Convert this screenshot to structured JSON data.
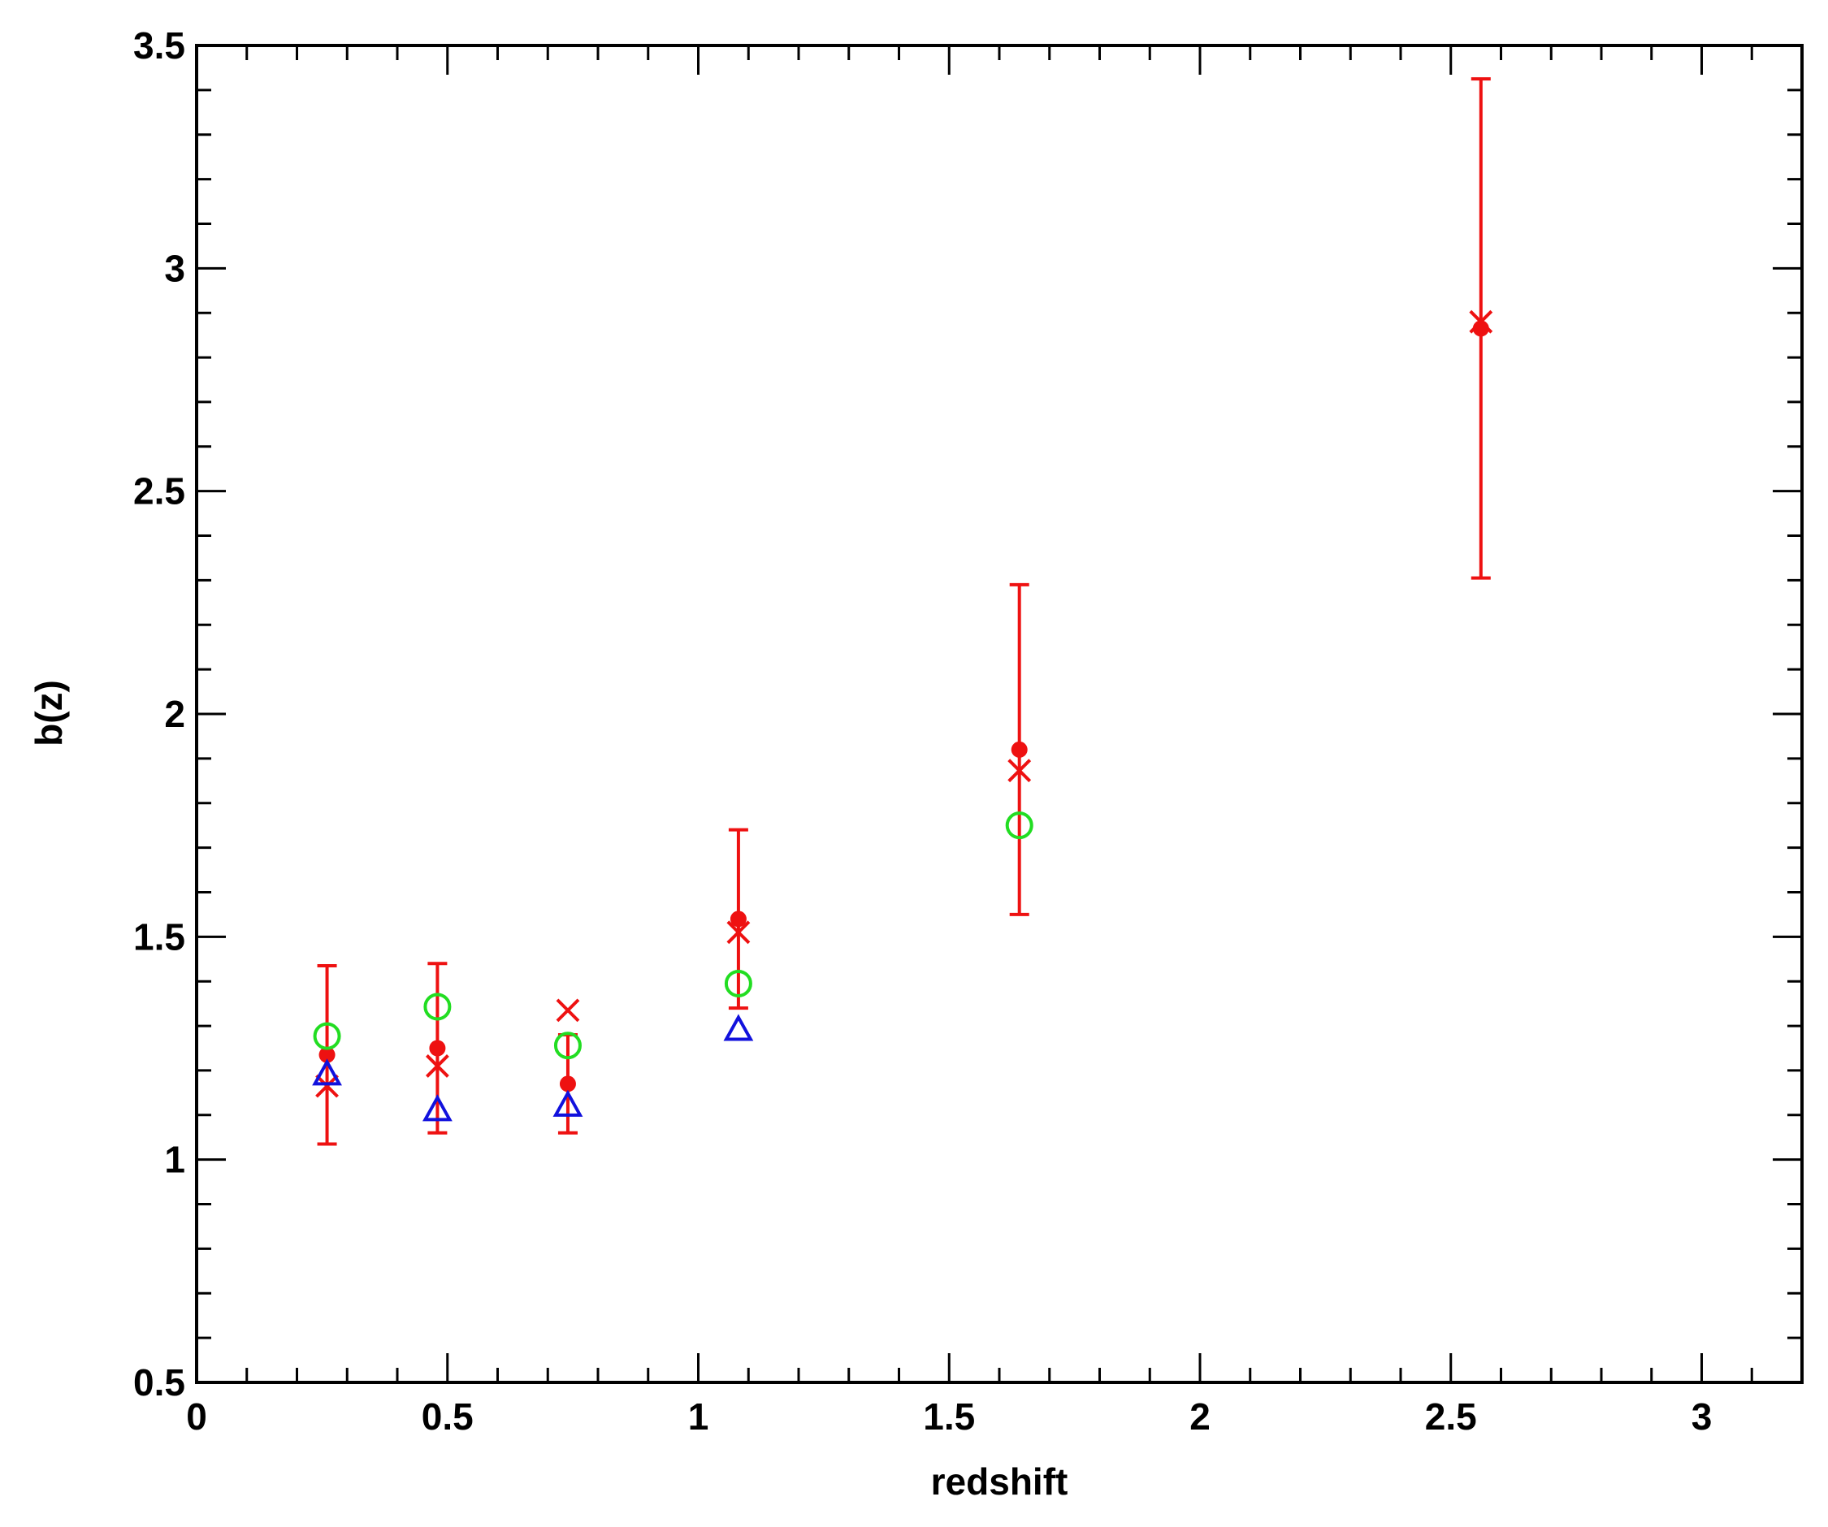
{
  "chart_data": {
    "type": "scatter",
    "x_label": "redshift",
    "y_label": "b(z)",
    "xlim": [
      0,
      3.2
    ],
    "ylim": [
      0.5,
      3.5
    ],
    "xticks": [
      0,
      0.5,
      1,
      1.5,
      2,
      2.5,
      3
    ],
    "yticks": [
      0.5,
      1,
      1.5,
      2,
      2.5,
      3,
      3.5
    ],
    "xminorticks": [
      0.1,
      0.2,
      0.3,
      0.4,
      0.6,
      0.7,
      0.8,
      0.9,
      1.1,
      1.2,
      1.3,
      1.4,
      1.6,
      1.7,
      1.8,
      1.9,
      2.1,
      2.2,
      2.3,
      2.4,
      2.6,
      2.7,
      2.8,
      2.9,
      3.1
    ],
    "yminorticks": [
      0.6,
      0.7,
      0.8,
      0.9,
      1.1,
      1.2,
      1.3,
      1.4,
      1.6,
      1.7,
      1.8,
      1.9,
      2.1,
      2.2,
      2.3,
      2.4,
      2.6,
      2.7,
      2.8,
      2.9,
      3.1,
      3.2,
      3.3,
      3.4
    ],
    "series": [
      {
        "marker": "dot",
        "color": "#ee1111",
        "x": [
          0.26,
          0.48,
          0.74,
          1.08,
          1.64,
          2.56
        ],
        "values": [
          1.235,
          1.25,
          1.17,
          1.54,
          1.92,
          2.865
        ],
        "errors": [
          0.2,
          0.19,
          0.11,
          0.2,
          0.37,
          0.56
        ]
      },
      {
        "marker": "cross",
        "color": "#ee1111",
        "x": [
          0.26,
          0.48,
          0.74,
          1.08,
          1.64,
          2.56
        ],
        "values": [
          1.165,
          1.21,
          1.335,
          1.51,
          1.873,
          2.88
        ]
      },
      {
        "marker": "circle",
        "color": "#22dd22",
        "x": [
          0.26,
          0.48,
          0.74,
          1.08,
          1.64
        ],
        "values": [
          1.277,
          1.343,
          1.256,
          1.395,
          1.75
        ]
      },
      {
        "marker": "triangle",
        "color": "#1111dd",
        "x": [
          0.26,
          0.48,
          0.74,
          1.08
        ],
        "values": [
          1.19,
          1.11,
          1.12,
          1.29
        ]
      }
    ]
  }
}
